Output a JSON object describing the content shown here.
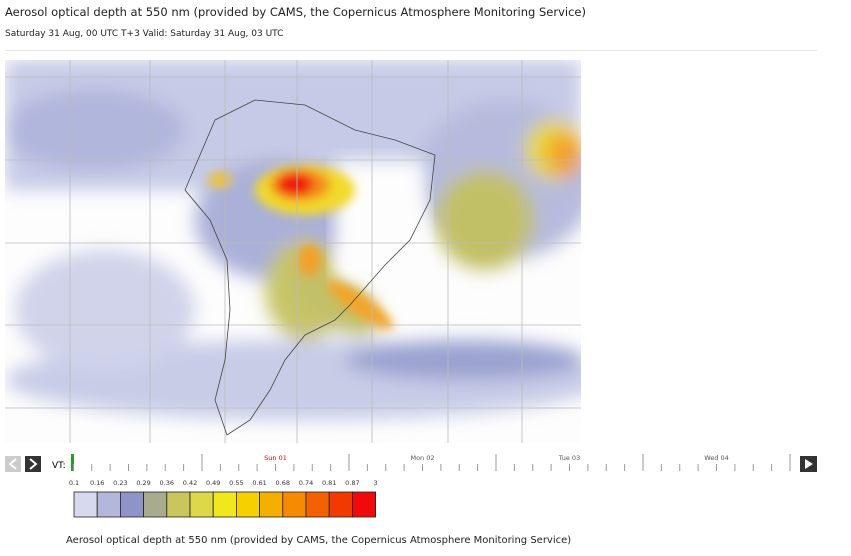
{
  "header": {
    "title": "Aerosol optical depth at 550 nm (provided by CAMS, the Copernicus Atmosphere Monitoring Service)",
    "subtitle": "Saturday 31 Aug, 00 UTC T+3 Valid: Saturday 31 Aug, 03 UTC"
  },
  "timeline": {
    "vt_label": "VT:",
    "days": [
      "Sun 01",
      "Mon 02",
      "Tue 03",
      "Wed 04"
    ]
  },
  "legend": {
    "labels": [
      "0.1",
      "0.16",
      "0.23",
      "0.29",
      "0.36",
      "0.42",
      "0.49",
      "0.55",
      "0.61",
      "0.68",
      "0.74",
      "0.81",
      "0.87",
      "3"
    ],
    "colors": [
      "#d7d9ee",
      "#b3b8db",
      "#8d95c7",
      "#a8ab8e",
      "#c8c65c",
      "#dcd84a",
      "#f1e81c",
      "#f6d000",
      "#f6ae00",
      "#f68a00",
      "#f46200",
      "#f23a00",
      "#f00a0a"
    ]
  },
  "caption": "Aerosol optical depth at 550 nm (provided by CAMS, the Copernicus Atmosphere Monitoring Service)"
}
